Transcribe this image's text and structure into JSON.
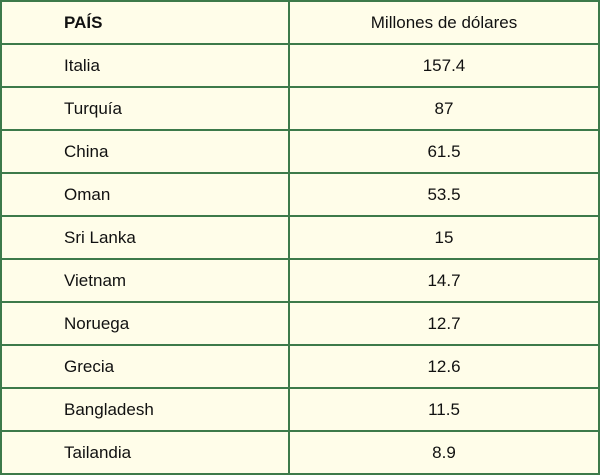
{
  "table": {
    "header": [
      "PAÍS",
      "Millones de dólares"
    ],
    "rows": [
      [
        "Italia",
        "157.4"
      ],
      [
        "Turquía",
        "87"
      ],
      [
        "China",
        "61.5"
      ],
      [
        "Oman",
        "53.5"
      ],
      [
        "Sri Lanka",
        "15"
      ],
      [
        "Vietnam",
        "14.7"
      ],
      [
        "Noruega",
        "12.7"
      ],
      [
        "Grecia",
        "12.6"
      ],
      [
        "Bangladesh",
        "11.5"
      ],
      [
        "Tailandia",
        "8.9"
      ]
    ]
  }
}
